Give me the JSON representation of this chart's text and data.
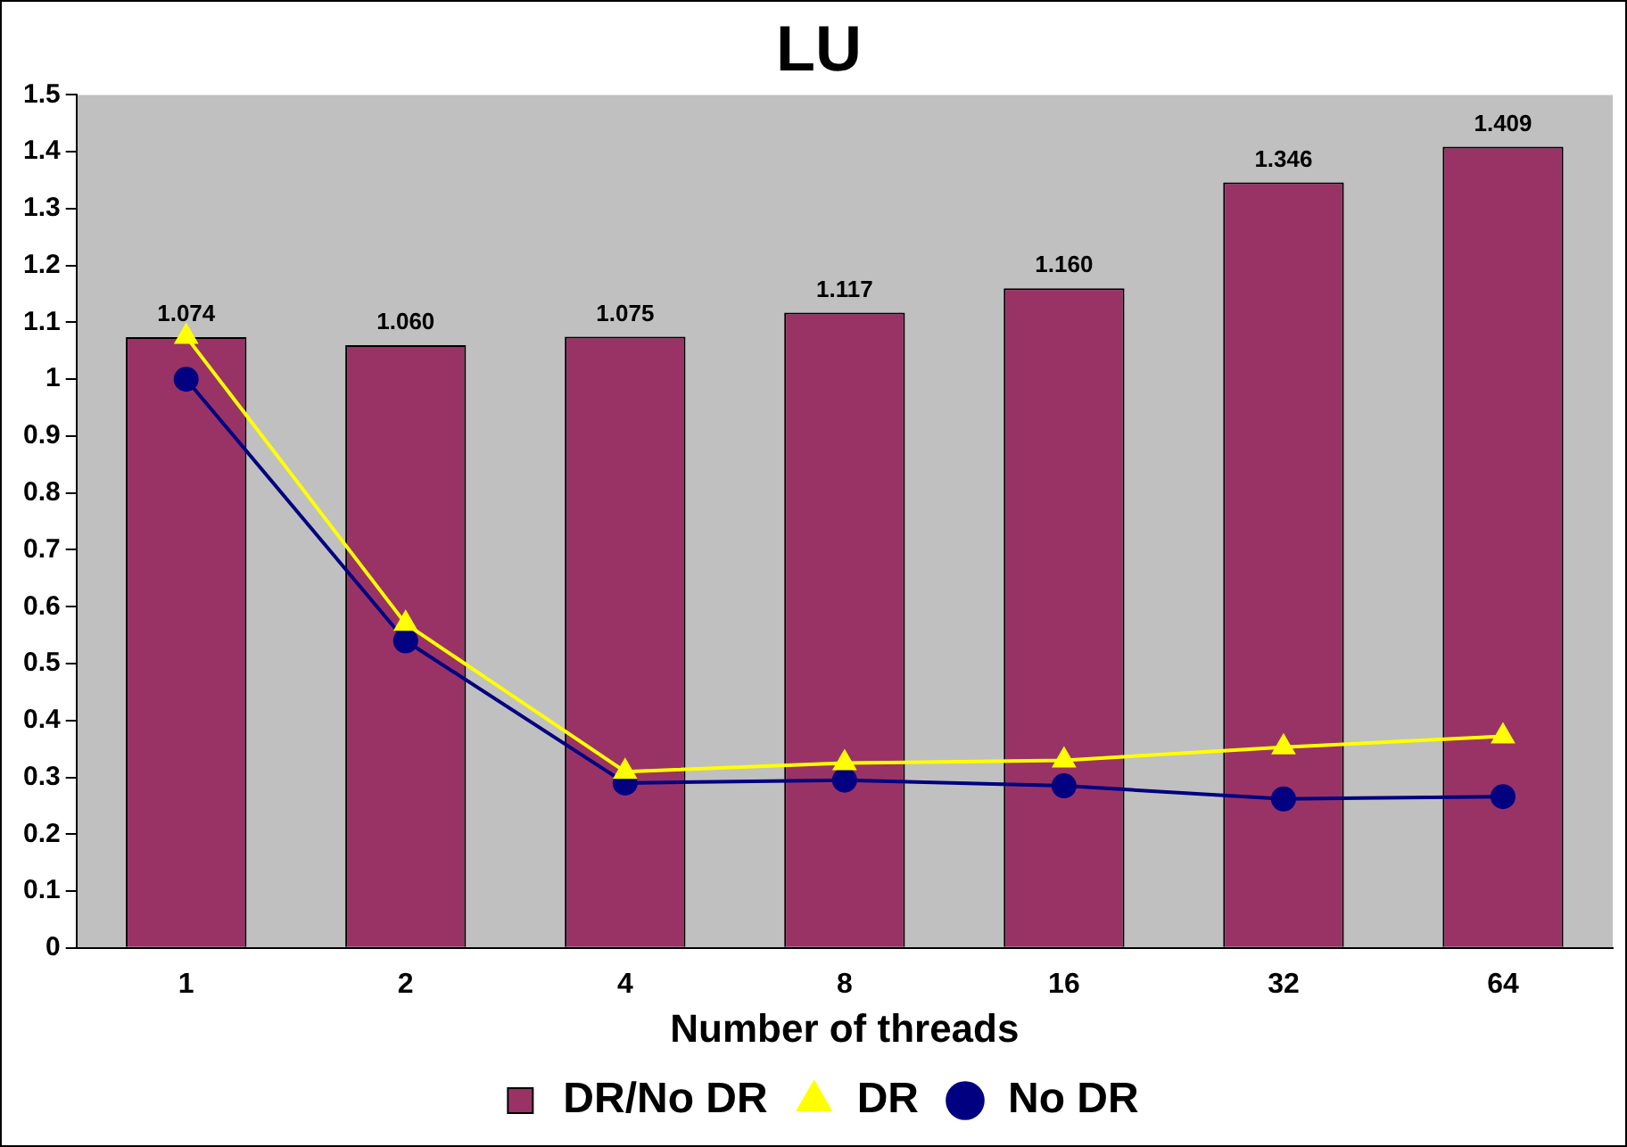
{
  "chart_data": {
    "type": "bar",
    "title": "LU",
    "xlabel": "Number of threads",
    "categories": [
      "1",
      "2",
      "4",
      "8",
      "16",
      "32",
      "64"
    ],
    "series": [
      {
        "name": "DR/No DR",
        "color": "#993366",
        "values": [
          1.074,
          1.06,
          1.075,
          1.117,
          1.16,
          1.346,
          1.409
        ],
        "value_labels": [
          "1.074",
          "1.060",
          "1.075",
          "1.117",
          "1.160",
          "1.346",
          "1.409"
        ]
      },
      {
        "name": "DR",
        "type": "line",
        "color": "#ffff00",
        "marker": "triangle",
        "values": [
          1.075,
          0.57,
          0.31,
          0.325,
          0.33,
          0.353,
          0.372
        ]
      },
      {
        "name": "No DR",
        "type": "line",
        "color": "#000080",
        "marker": "circle",
        "values": [
          1.0,
          0.54,
          0.29,
          0.295,
          0.285,
          0.262,
          0.266
        ]
      }
    ],
    "ylim": [
      0,
      1.5
    ],
    "yticks": [
      0,
      0.1,
      0.2,
      0.3,
      0.4,
      0.5,
      0.6,
      0.7,
      0.8,
      0.9,
      1,
      1.1,
      1.2,
      1.3,
      1.4,
      1.5
    ],
    "grid": false,
    "legend": "bottom"
  }
}
